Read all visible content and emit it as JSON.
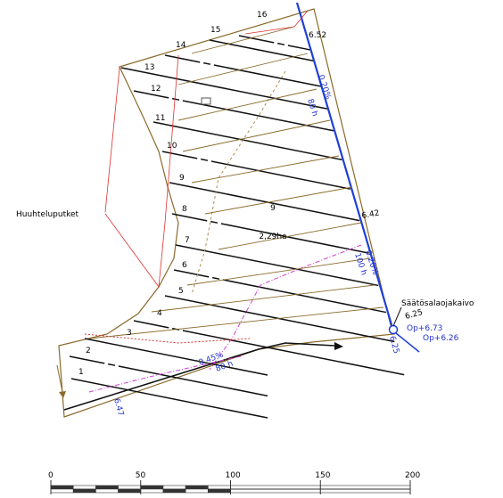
{
  "drains": [
    "1",
    "2",
    "3",
    "4",
    "5",
    "6",
    "7",
    "8",
    "9",
    "10",
    "11",
    "12",
    "13",
    "14",
    "15",
    "16"
  ],
  "flush_label": "Huuhteluputket",
  "area": {
    "number": "9",
    "size": "2,29ha"
  },
  "well": {
    "name": "Säätösalaojakaivo",
    "top": "Op+6.73",
    "bottom": "Op+6.26"
  },
  "levels": {
    "top": "6.52",
    "mid": "6.42",
    "well": "6.25",
    "well_low": "6.25",
    "left": "6.47"
  },
  "slopes": {
    "upper": "0.20%",
    "upper_len": "80 h",
    "lower": "0.20%",
    "lower_len": "100 h",
    "collector": "0.45%",
    "collector_len": "80 h"
  },
  "scale": [
    "0",
    "50",
    "100",
    "150",
    "200"
  ]
}
